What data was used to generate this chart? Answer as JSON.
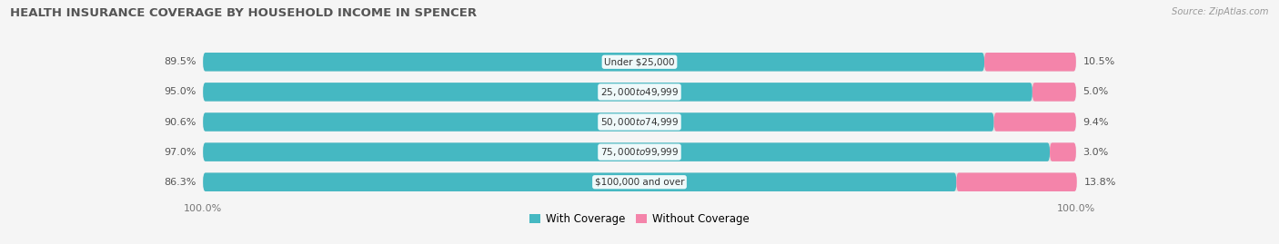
{
  "title": "HEALTH INSURANCE COVERAGE BY HOUSEHOLD INCOME IN SPENCER",
  "source": "Source: ZipAtlas.com",
  "categories": [
    "Under $25,000",
    "$25,000 to $49,999",
    "$50,000 to $74,999",
    "$75,000 to $99,999",
    "$100,000 and over"
  ],
  "with_coverage": [
    89.5,
    95.0,
    90.6,
    97.0,
    86.3
  ],
  "without_coverage": [
    10.5,
    5.0,
    9.4,
    3.0,
    13.8
  ],
  "color_with": "#45b8c2",
  "color_without": "#f484aa",
  "bar_bg_color": "#e4e4e4",
  "background_color": "#f5f5f5",
  "bar_height": 0.62,
  "title_fontsize": 9.5,
  "label_fontsize": 8.0,
  "cat_fontsize": 7.5,
  "tick_fontsize": 8,
  "legend_fontsize": 8.5,
  "rounding": 0.28
}
